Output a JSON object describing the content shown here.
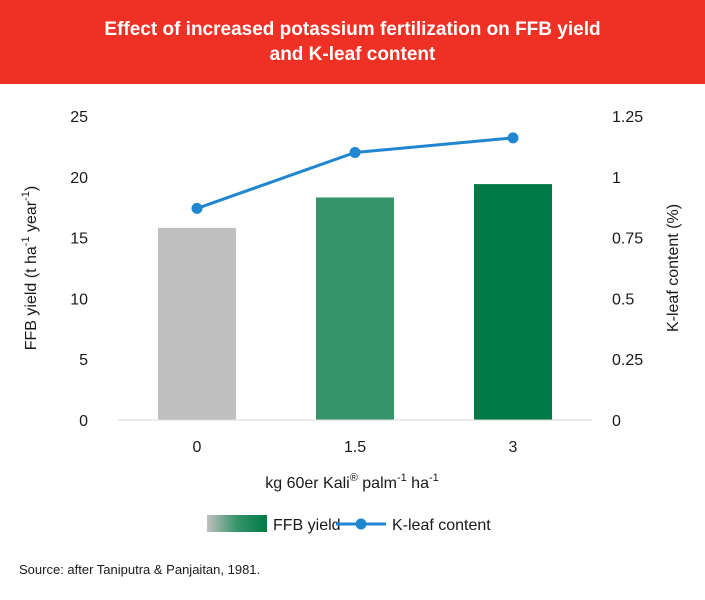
{
  "chart_data": {
    "type": "bar+line",
    "title_line1": "Effect of increased potassium fertilization on FFB yield",
    "title_line2": "and K-leaf content",
    "categories": [
      "0",
      "1.5",
      "3"
    ],
    "series": [
      {
        "name": "FFB yield",
        "type": "bar",
        "axis": "left",
        "values": [
          15.8,
          18.3,
          19.4
        ],
        "colors": [
          "#c0c0c0",
          "#36946a",
          "#007a45"
        ]
      },
      {
        "name": "K-leaf content",
        "type": "line",
        "axis": "right",
        "values": [
          0.87,
          1.1,
          1.16
        ],
        "color": "#1f86cf"
      }
    ],
    "y_left": {
      "ticks": [
        "0",
        "5",
        "10",
        "15",
        "20",
        "25"
      ],
      "ylim": [
        0,
        25
      ]
    },
    "y_right": {
      "ticks": [
        "0",
        "0.25",
        "0.5",
        "0.75",
        "1",
        "1.25"
      ],
      "ylim": [
        0,
        1.25
      ]
    },
    "xlabel": {
      "prefix": "kg 60er Kali",
      "reg": "®",
      "mid": " palm",
      "sup1": "-1",
      "mid2": " ha",
      "sup2": "-1"
    },
    "ylabel_left": {
      "a": "FFB yield (t ha",
      "sup1": "-1",
      "b": " year",
      "sup2": "-1",
      "c": ")"
    },
    "ylabel_right": "K-leaf content (%)",
    "legend_position": "bottom",
    "grid": false
  },
  "source": "Source: after Taniputra & Panjaitan, 1981."
}
